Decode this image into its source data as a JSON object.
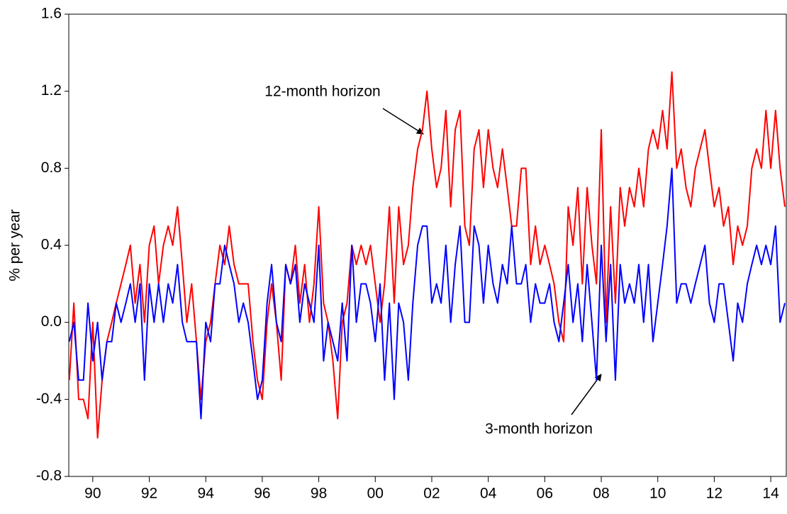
{
  "chart_data": {
    "type": "line",
    "y_label": "% per year",
    "annotations": [
      {
        "text": "12-month horizon"
      },
      {
        "text": "3-month horizon"
      }
    ],
    "x": [
      1989.67,
      1989.83,
      1990,
      1990.17,
      1990.33,
      1990.5,
      1990.67,
      1990.83,
      1991,
      1991.17,
      1991.33,
      1991.5,
      1991.67,
      1991.83,
      1992,
      1992.17,
      1992.33,
      1992.5,
      1992.67,
      1992.83,
      1993,
      1993.17,
      1993.33,
      1993.5,
      1993.67,
      1993.83,
      1994,
      1994.17,
      1994.33,
      1994.5,
      1994.67,
      1994.83,
      1995,
      1995.17,
      1995.33,
      1995.5,
      1995.67,
      1995.83,
      1996,
      1996.17,
      1996.33,
      1996.5,
      1996.67,
      1996.83,
      1997,
      1997.17,
      1997.33,
      1997.5,
      1997.67,
      1997.83,
      1998,
      1998.17,
      1998.33,
      1998.5,
      1998.67,
      1998.83,
      1999,
      1999.17,
      1999.33,
      1999.5,
      1999.67,
      1999.83,
      2000,
      2000.17,
      2000.33,
      2000.5,
      2000.67,
      2000.83,
      2001,
      2001.17,
      2001.33,
      2001.5,
      2001.67,
      2001.83,
      2002,
      2002.17,
      2002.33,
      2002.5,
      2002.67,
      2002.83,
      2003,
      2003.17,
      2003.33,
      2003.5,
      2003.67,
      2003.83,
      2004,
      2004.17,
      2004.33,
      2004.5,
      2004.67,
      2004.83,
      2005,
      2005.17,
      2005.33,
      2005.5,
      2005.67,
      2005.83,
      2006,
      2006.17,
      2006.33,
      2006.5,
      2006.67,
      2006.83,
      2007,
      2007.17,
      2007.33,
      2007.5,
      2007.67,
      2007.83,
      2008,
      2008.17,
      2008.33,
      2008.5,
      2008.67,
      2008.83,
      2009,
      2009.17,
      2009.33,
      2009.5,
      2009.67,
      2009.83,
      2010,
      2010.17,
      2010.33,
      2010.5,
      2010.67,
      2010.83,
      2011,
      2011.17,
      2011.33,
      2011.5,
      2011.67,
      2011.83,
      2012,
      2012.17,
      2012.33,
      2012.5,
      2012.67,
      2012.83,
      2013,
      2013.17,
      2013.33,
      2013.5,
      2013.67,
      2013.83,
      2014,
      2014.17,
      2014.33,
      2014.5,
      2014.67,
      2014.83,
      2015
    ],
    "series": [
      {
        "name": "12-month horizon",
        "color": "#ff0000",
        "values": [
          -0.3,
          0.1,
          -0.4,
          -0.4,
          -0.5,
          0.0,
          -0.6,
          -0.3,
          -0.1,
          0.0,
          0.1,
          0.2,
          0.3,
          0.4,
          0.1,
          0.3,
          0.0,
          0.4,
          0.5,
          0.2,
          0.4,
          0.5,
          0.4,
          0.6,
          0.3,
          0.0,
          0.2,
          -0.1,
          -0.4,
          -0.1,
          0.0,
          0.2,
          0.4,
          0.3,
          0.5,
          0.3,
          0.2,
          0.2,
          0.2,
          -0.1,
          -0.3,
          -0.4,
          0.0,
          0.2,
          0.0,
          -0.3,
          0.3,
          0.2,
          0.4,
          0.1,
          0.3,
          0.0,
          0.2,
          0.6,
          0.1,
          0.0,
          -0.2,
          -0.5,
          0.0,
          0.1,
          0.4,
          0.3,
          0.4,
          0.3,
          0.4,
          0.2,
          0.0,
          0.2,
          0.6,
          0.1,
          0.6,
          0.3,
          0.4,
          0.7,
          0.9,
          1.0,
          1.2,
          0.9,
          0.7,
          0.8,
          1.1,
          0.6,
          1.0,
          1.1,
          0.5,
          0.4,
          0.9,
          1.0,
          0.7,
          1.0,
          0.8,
          0.7,
          0.9,
          0.7,
          0.5,
          0.5,
          0.8,
          0.8,
          0.3,
          0.5,
          0.3,
          0.4,
          0.3,
          0.2,
          0.0,
          -0.1,
          0.6,
          0.4,
          0.7,
          0.2,
          0.7,
          0.4,
          0.2,
          1.0,
          0.0,
          0.6,
          0.1,
          0.7,
          0.5,
          0.7,
          0.6,
          0.8,
          0.6,
          0.9,
          1.0,
          0.9,
          1.1,
          0.9,
          1.3,
          0.8,
          0.9,
          0.7,
          0.6,
          0.8,
          0.9,
          1.0,
          0.8,
          0.6,
          0.7,
          0.5,
          0.6,
          0.3,
          0.5,
          0.4,
          0.5,
          0.8,
          0.9,
          0.8,
          1.1,
          0.8,
          1.1,
          0.8,
          0.6
        ]
      },
      {
        "name": "3-month horizon",
        "color": "#0000ff",
        "values": [
          -0.1,
          0.0,
          -0.3,
          -0.3,
          0.1,
          -0.2,
          0.0,
          -0.3,
          -0.1,
          -0.1,
          0.1,
          0.0,
          0.1,
          0.2,
          0.0,
          0.2,
          -0.3,
          0.2,
          0.0,
          0.2,
          0.0,
          0.2,
          0.1,
          0.3,
          0.0,
          -0.1,
          -0.1,
          -0.1,
          -0.5,
          0.0,
          -0.1,
          0.2,
          0.2,
          0.4,
          0.3,
          0.2,
          0.0,
          0.1,
          0.0,
          -0.2,
          -0.4,
          -0.3,
          0.1,
          0.3,
          0.0,
          -0.1,
          0.3,
          0.2,
          0.3,
          0.0,
          0.2,
          0.1,
          0.0,
          0.4,
          -0.2,
          0.0,
          -0.1,
          -0.2,
          0.1,
          -0.2,
          0.4,
          0.0,
          0.2,
          0.2,
          0.1,
          -0.1,
          0.2,
          -0.3,
          0.1,
          -0.4,
          0.1,
          0.0,
          -0.3,
          0.1,
          0.4,
          0.5,
          0.5,
          0.1,
          0.2,
          0.1,
          0.4,
          0.0,
          0.3,
          0.5,
          0.0,
          0.0,
          0.5,
          0.4,
          0.1,
          0.4,
          0.2,
          0.1,
          0.3,
          0.2,
          0.5,
          0.2,
          0.2,
          0.3,
          0.0,
          0.2,
          0.1,
          0.1,
          0.2,
          0.0,
          -0.1,
          0.1,
          0.3,
          0.0,
          0.2,
          -0.1,
          0.3,
          0.0,
          -0.3,
          0.4,
          -0.1,
          0.3,
          -0.3,
          0.3,
          0.1,
          0.2,
          0.1,
          0.3,
          0.0,
          0.3,
          -0.1,
          0.1,
          0.3,
          0.5,
          0.8,
          0.1,
          0.2,
          0.2,
          0.1,
          0.2,
          0.3,
          0.4,
          0.1,
          0.0,
          0.2,
          0.2,
          0.0,
          -0.2,
          0.1,
          0.0,
          0.2,
          0.3,
          0.4,
          0.3,
          0.4,
          0.3,
          0.5,
          0.0,
          0.1
        ]
      }
    ],
    "xlim": [
      1989.65,
      2015.05
    ],
    "xticks": [
      {
        "value": 1990.5,
        "label": "90"
      },
      {
        "value": 1992.5,
        "label": "92"
      },
      {
        "value": 1994.5,
        "label": "94"
      },
      {
        "value": 1996.5,
        "label": "96"
      },
      {
        "value": 1998.5,
        "label": "98"
      },
      {
        "value": 2000.5,
        "label": "00"
      },
      {
        "value": 2002.5,
        "label": "02"
      },
      {
        "value": 2004.5,
        "label": "04"
      },
      {
        "value": 2006.5,
        "label": "06"
      },
      {
        "value": 2008.5,
        "label": "08"
      },
      {
        "value": 2010.5,
        "label": "10"
      },
      {
        "value": 2012.5,
        "label": "12"
      },
      {
        "value": 2014.5,
        "label": "14"
      }
    ],
    "ylim": [
      -0.8,
      1.6
    ],
    "yticks": [
      -0.8,
      -0.4,
      {
        "value": 0,
        "label": "0.0"
      },
      0.4,
      0.8,
      1.2,
      1.6
    ]
  }
}
